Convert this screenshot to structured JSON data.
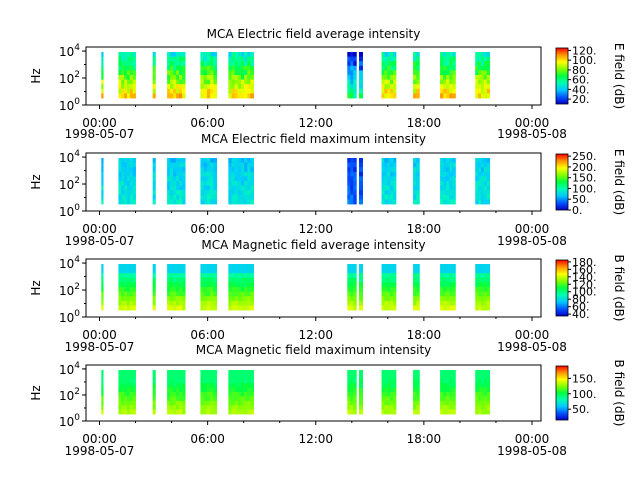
{
  "chart_data": [
    {
      "type": "heatmap",
      "title": "MCA  Electric field average intensity",
      "ylabel": "Hz",
      "xticks": [
        "00:00",
        "06:00",
        "12:00",
        "18:00",
        "00:00"
      ],
      "x_date_start": "1998-05-07",
      "x_date_end": "1998-05-08",
      "yticks": [
        "10^0",
        "10^2",
        "10^4"
      ],
      "colorbar": {
        "label": "E field (dB)",
        "ticks": [
          "20.",
          "40.",
          "60.",
          "80.",
          "100.",
          "120."
        ],
        "range": [
          10,
          125
        ]
      },
      "style": "e_avg"
    },
    {
      "type": "heatmap",
      "title": "MCA  Electric field maximum intensity",
      "ylabel": "Hz",
      "xticks": [
        "00:00",
        "06:00",
        "12:00",
        "18:00",
        "00:00"
      ],
      "x_date_start": "1998-05-07",
      "x_date_end": "1998-05-08",
      "yticks": [
        "10^0",
        "10^2",
        "10^4"
      ],
      "colorbar": {
        "label": "E field (dB)",
        "ticks": [
          "0.",
          "50.",
          "100.",
          "150.",
          "200.",
          "250."
        ],
        "range": [
          0,
          260
        ]
      },
      "style": "e_max"
    },
    {
      "type": "heatmap",
      "title": "MCA  Magnetic field average intensity",
      "ylabel": "Hz",
      "xticks": [
        "00:00",
        "06:00",
        "12:00",
        "18:00",
        "00:00"
      ],
      "x_date_start": "1998-05-07",
      "x_date_end": "1998-05-08",
      "yticks": [
        "10^0",
        "10^2",
        "10^4"
      ],
      "colorbar": {
        "label": "B field (dB)",
        "ticks": [
          "40.",
          "60.",
          "80.",
          "100.",
          "120.",
          "140.",
          "160.",
          "180."
        ],
        "range": [
          35,
          185
        ]
      },
      "style": "b_avg"
    },
    {
      "type": "heatmap",
      "title": "MCA  Magnetic field maximum intensity",
      "ylabel": "Hz",
      "xticks": [
        "00:00",
        "06:00",
        "12:00",
        "18:00",
        "00:00"
      ],
      "x_date_start": "1998-05-07",
      "x_date_end": "1998-05-08",
      "yticks": [
        "10^0",
        "10^2",
        "10^4"
      ],
      "colorbar": {
        "label": "B field (dB)",
        "ticks": [
          "50.",
          "100.",
          "150."
        ],
        "range": [
          15,
          190
        ]
      },
      "style": "b_max"
    }
  ],
  "data_intervals_hours": [
    [
      0.1,
      0.2
    ],
    [
      1.05,
      2.0
    ],
    [
      2.95,
      3.1
    ],
    [
      3.75,
      4.75
    ],
    [
      5.6,
      6.5
    ],
    [
      7.15,
      8.55
    ],
    [
      13.75,
      14.25
    ],
    [
      14.4,
      14.6
    ],
    [
      15.65,
      16.45
    ],
    [
      17.4,
      17.75
    ],
    [
      18.9,
      19.75
    ],
    [
      20.85,
      21.65
    ]
  ]
}
